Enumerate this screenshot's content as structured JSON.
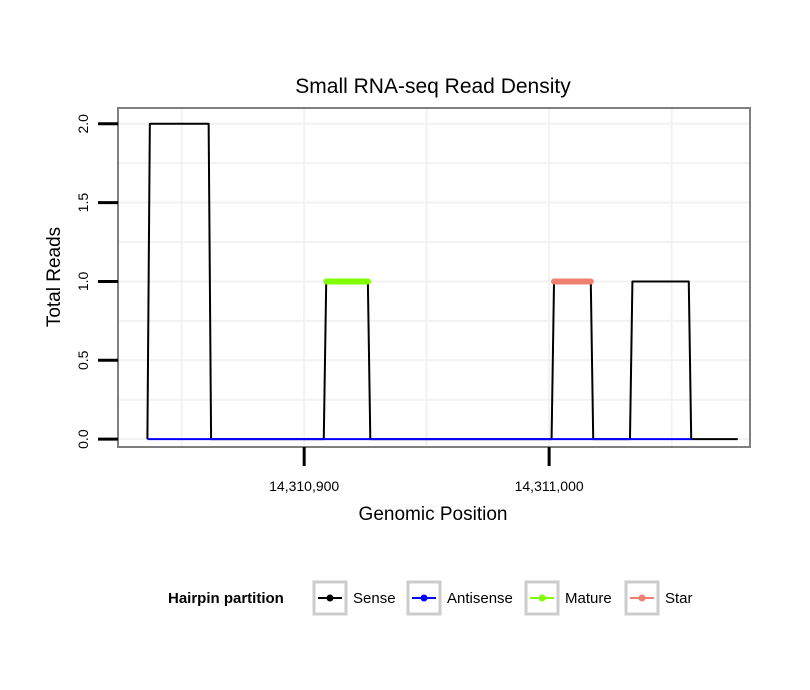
{
  "chart_data": {
    "type": "line",
    "title": "Small RNA-seq Read Density",
    "xlabel": "Genomic Position",
    "ylabel": "Total Reads",
    "xlim": [
      14310824,
      14311082
    ],
    "ylim": [
      -0.05,
      2.1
    ],
    "x_ticks": [
      14310900,
      14311000
    ],
    "x_tick_labels": [
      "14,310,900",
      "14,311,000"
    ],
    "y_ticks": [
      0,
      0.5,
      1,
      1.5,
      2
    ],
    "y_tick_labels": [
      "0.0",
      "0.5",
      "1.0",
      "1.5",
      "2.0"
    ],
    "grid": true,
    "legend": {
      "title": "Hairpin partition",
      "position": "bottom",
      "entries": [
        "Sense",
        "Antisense",
        "Mature",
        "Star"
      ]
    },
    "series": [
      {
        "name": "Sense",
        "color": "#000000",
        "x": [
          14310836,
          14310837,
          14310861,
          14310862,
          14310908,
          14310909,
          14310926,
          14310927,
          14311001,
          14311002,
          14311017,
          14311018,
          14311033,
          14311034,
          14311057,
          14311058,
          14311077
        ],
        "values": [
          0,
          2,
          2,
          0,
          0,
          1,
          1,
          0,
          0,
          1,
          1,
          0,
          0,
          1,
          1,
          0,
          0
        ]
      },
      {
        "name": "Antisense",
        "color": "#0000ff",
        "x": [
          14310836,
          14310862,
          14310908,
          14310927,
          14311001,
          14311018,
          14311033,
          14311058
        ],
        "values": [
          0,
          0,
          0,
          0,
          0,
          0,
          0,
          0
        ]
      },
      {
        "name": "Mature",
        "color": "#7fff00",
        "x": [
          14310909,
          14310926
        ],
        "values": [
          1,
          1
        ]
      },
      {
        "name": "Star",
        "color": "#f08070",
        "x": [
          14311002,
          14311017
        ],
        "values": [
          1,
          1
        ]
      }
    ]
  }
}
